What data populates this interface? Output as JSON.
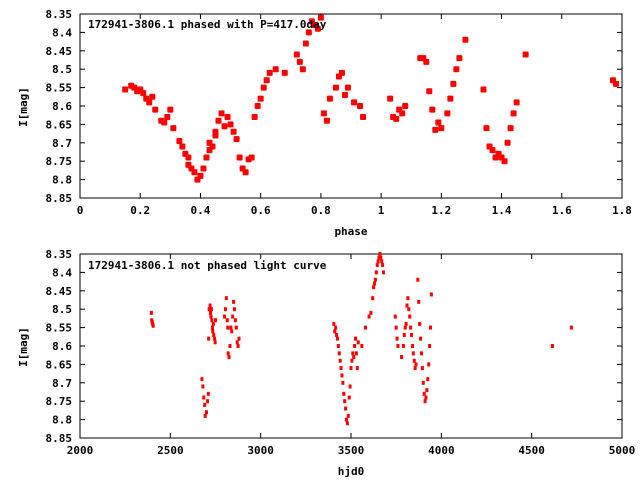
{
  "chart_data": [
    {
      "type": "scatter",
      "title": "172941-3806.1 phased with P=417.0day",
      "xlabel": "phase",
      "ylabel": "I[mag]",
      "xlim": [
        0,
        1.8
      ],
      "ylim": [
        8.85,
        8.35
      ],
      "y_inverted": true,
      "grid": false,
      "marker_color": "#ff0000",
      "xticks": [
        "0",
        "0.2",
        "0.4",
        "0.6",
        "0.8",
        "1",
        "1.2",
        "1.4",
        "1.6",
        "1.8"
      ],
      "yticks": [
        "8.35",
        "8.4",
        "8.45",
        "8.5",
        "8.55",
        "8.6",
        "8.65",
        "8.7",
        "8.75",
        "8.8",
        "8.85"
      ],
      "series": [
        {
          "x": [
            0.15,
            0.17,
            0.18,
            0.19,
            0.2,
            0.21,
            0.22,
            0.23,
            0.24,
            0.25,
            0.27,
            0.28,
            0.29,
            0.3,
            0.31,
            0.33,
            0.34,
            0.35,
            0.36,
            0.36,
            0.37,
            0.38,
            0.39,
            0.4,
            0.41,
            0.42,
            0.43,
            0.43,
            0.44,
            0.45,
            0.45,
            0.46,
            0.47,
            0.48,
            0.49,
            0.5,
            0.51,
            0.52,
            0.53,
            0.54,
            0.55,
            0.56,
            0.57,
            0.58,
            0.59,
            0.6,
            0.61,
            0.62,
            0.63,
            0.65,
            0.68,
            0.72,
            0.73,
            0.74,
            0.75,
            0.76,
            0.77,
            0.78,
            0.79,
            0.8,
            0.81,
            0.82,
            0.83,
            0.85,
            0.86,
            0.87,
            0.88,
            0.89,
            0.91,
            0.93,
            0.94,
            1.03,
            1.04,
            1.05,
            1.06,
            1.07,
            1.08,
            1.13,
            1.14,
            1.15,
            1.16,
            1.17,
            1.18,
            1.19,
            1.2,
            1.22,
            1.23,
            1.24,
            1.25,
            1.26,
            1.28,
            1.34,
            1.35,
            1.36,
            1.37,
            1.38,
            1.39,
            1.4,
            1.41,
            1.42,
            1.43,
            1.44,
            1.45,
            1.48,
            1.77,
            1.78
          ],
          "y": [
            8.555,
            8.545,
            8.55,
            8.56,
            8.555,
            8.565,
            8.58,
            8.59,
            8.575,
            8.61,
            8.64,
            8.645,
            8.63,
            8.61,
            8.66,
            8.695,
            8.71,
            8.73,
            8.76,
            8.74,
            8.77,
            8.78,
            8.8,
            8.79,
            8.77,
            8.74,
            8.72,
            8.7,
            8.71,
            8.68,
            8.67,
            8.64,
            8.62,
            8.655,
            8.63,
            8.65,
            8.67,
            8.69,
            8.74,
            8.77,
            8.78,
            8.745,
            8.74,
            8.63,
            8.6,
            8.58,
            8.55,
            8.53,
            8.51,
            8.5,
            8.51,
            8.46,
            8.48,
            8.5,
            8.43,
            8.4,
            8.37,
            8.38,
            8.39,
            8.36,
            8.62,
            8.64,
            8.58,
            8.55,
            8.52,
            8.51,
            8.57,
            8.55,
            8.59,
            8.6,
            8.63,
            8.58,
            8.63,
            8.635,
            8.61,
            8.62,
            8.6,
            8.47,
            8.47,
            8.48,
            8.56,
            8.61,
            8.665,
            8.645,
            8.66,
            8.62,
            8.58,
            8.54,
            8.5,
            8.47,
            8.42,
            8.555,
            8.66,
            8.71,
            8.72,
            8.74,
            8.73,
            8.74,
            8.75,
            8.7,
            8.66,
            8.62,
            8.59,
            8.46,
            8.53,
            8.54
          ]
        }
      ]
    },
    {
      "type": "scatter",
      "title": "172941-3806.1 not phased light curve",
      "xlabel": "hjd0",
      "ylabel": "I[mag]",
      "xlim": [
        2000,
        5000
      ],
      "ylim": [
        8.85,
        8.35
      ],
      "y_inverted": true,
      "grid": false,
      "marker_color": "#ff0000",
      "xticks": [
        "2000",
        "2500",
        "3000",
        "3500",
        "4000",
        "4500",
        "5000"
      ],
      "yticks": [
        "8.35",
        "8.4",
        "8.45",
        "8.5",
        "8.55",
        "8.6",
        "8.65",
        "8.7",
        "8.75",
        "8.8",
        "8.85"
      ],
      "series": [
        {
          "x": [
            2395,
            2397,
            2400,
            2402,
            2405,
            2675,
            2680,
            2685,
            2690,
            2693,
            2700,
            2706,
            2710,
            2712,
            2715,
            2720,
            2722,
            2725,
            2728,
            2730,
            2733,
            2735,
            2738,
            2740,
            2745,
            2748,
            2750,
            2800,
            2805,
            2810,
            2815,
            2818,
            2820,
            2825,
            2830,
            2835,
            2840,
            2845,
            2850,
            2855,
            2860,
            2865,
            2870,
            2875,
            2880,
            3405,
            3410,
            3415,
            3420,
            3425,
            3430,
            3435,
            3440,
            3445,
            3450,
            3455,
            3460,
            3465,
            3470,
            3475,
            3480,
            3485,
            3490,
            3495,
            3500,
            3505,
            3510,
            3515,
            3520,
            3525,
            3530,
            3535,
            3540,
            3560,
            3580,
            3600,
            3610,
            3620,
            3625,
            3630,
            3635,
            3640,
            3645,
            3650,
            3655,
            3660,
            3665,
            3670,
            3675,
            3680,
            3745,
            3750,
            3755,
            3760,
            3780,
            3790,
            3795,
            3800,
            3805,
            3810,
            3815,
            3820,
            3825,
            3830,
            3835,
            3840,
            3845,
            3850,
            3855,
            3860,
            3870,
            3875,
            3880,
            3885,
            3890,
            3895,
            3900,
            3905,
            3910,
            3915,
            3920,
            3925,
            3930,
            3935,
            3940,
            3945,
            4615,
            4720
          ],
          "y": [
            8.51,
            8.53,
            8.535,
            8.54,
            8.545,
            8.69,
            8.71,
            8.74,
            8.76,
            8.79,
            8.78,
            8.75,
            8.73,
            8.58,
            8.5,
            8.49,
            8.51,
            8.52,
            8.5,
            8.53,
            8.55,
            8.56,
            8.54,
            8.57,
            8.58,
            8.59,
            8.53,
            8.52,
            8.5,
            8.47,
            8.53,
            8.55,
            8.62,
            8.63,
            8.6,
            8.55,
            8.56,
            8.52,
            8.48,
            8.5,
            8.53,
            8.55,
            8.59,
            8.6,
            8.58,
            8.54,
            8.56,
            8.55,
            8.57,
            8.58,
            8.6,
            8.62,
            8.64,
            8.66,
            8.68,
            8.7,
            8.73,
            8.75,
            8.77,
            8.8,
            8.81,
            8.79,
            8.74,
            8.71,
            8.66,
            8.64,
            8.62,
            8.63,
            8.6,
            8.58,
            8.62,
            8.66,
            8.59,
            8.6,
            8.55,
            8.52,
            8.51,
            8.47,
            8.44,
            8.43,
            8.42,
            8.4,
            8.38,
            8.37,
            8.36,
            8.35,
            8.36,
            8.37,
            8.38,
            8.4,
            8.52,
            8.55,
            8.58,
            8.6,
            8.63,
            8.6,
            8.57,
            8.55,
            8.54,
            8.49,
            8.47,
            8.5,
            8.52,
            8.55,
            8.57,
            8.6,
            8.62,
            8.64,
            8.66,
            8.65,
            8.42,
            8.48,
            8.54,
            8.58,
            8.62,
            8.66,
            8.7,
            8.73,
            8.75,
            8.74,
            8.72,
            8.69,
            8.65,
            8.6,
            8.55,
            8.46,
            8.6,
            8.55
          ]
        }
      ]
    }
  ]
}
